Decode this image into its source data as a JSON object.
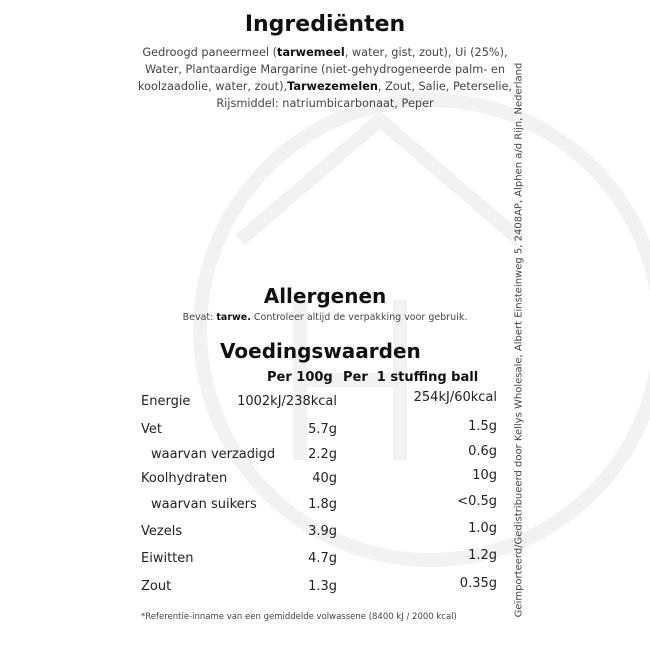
{
  "ingredients": {
    "title": "Ingrediënten",
    "parts": [
      "Gedroogd paneermeel (",
      "tarwemeel",
      ", water, gist, zout), Ui (25%), Water, Plantaardige Margarine (niet-gehydrogeneerde palm- en koolzaadolie, water, zout),",
      "Tarwezemelen",
      ", Zout, Salie, Peterselie, Rijsmiddel: natriumbicarbonaat, Peper"
    ]
  },
  "allergens": {
    "title": "Allergenen",
    "prefix": "Bevat: ",
    "bold": "tarwe.",
    "suffix": " Controleer altijd de verpakking voor gebruik."
  },
  "nutrition": {
    "title": "Voedingswaarden",
    "col1": "Per 100g",
    "col2": "Per  1 stuffing ball",
    "rows": [
      {
        "label": "Energie",
        "v1": "1002kJ/238kcal",
        "v2": "254kJ/60kcal"
      },
      {
        "label": "Vet",
        "v1": "5.7g",
        "v2": "1.5g"
      },
      {
        "label": "waarvan verzadigd",
        "v1": "2.2g",
        "v2": "0.6g",
        "sub": true
      },
      {
        "label": "Koolhydraten",
        "v1": "40g",
        "v2": "10g"
      },
      {
        "label": "waarvan suikers",
        "v1": "1.8g",
        "v2": "<0.5g",
        "sub": true
      },
      {
        "label": "Vezels",
        "v1": "3.9g",
        "v2": "1.0g"
      },
      {
        "label": "Eiwitten",
        "v1": "4.7g",
        "v2": "1.2g"
      },
      {
        "label": "Zout",
        "v1": "1.3g",
        "v2": "0.35g"
      }
    ],
    "footnote": "*Referentie-inname van een gemiddelde volwassene (8400 kJ / 2000 kcal)"
  },
  "side_text": "Geïmporteerd/Gedistribueerd door Kellys Wholesale, Albert Einsteinweg 5, 2408AP, Alphen a/d Rijn, Nederland"
}
